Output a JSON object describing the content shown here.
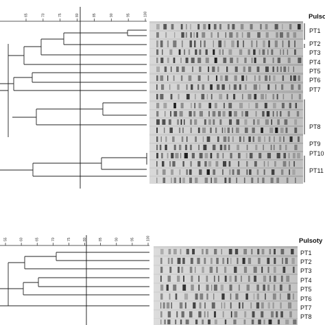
{
  "panels": [
    {
      "header": "Pulsoty",
      "scale_ticks": [
        "65",
        "70",
        "75",
        "80",
        "85",
        "90",
        "95",
        "100"
      ],
      "pulsotypes": [
        "PT1",
        "PT2",
        "PT3",
        "PT4",
        "PT5",
        "PT6",
        "PT7",
        "PT8",
        "PT9",
        "PT10",
        "PT11"
      ]
    },
    {
      "header": "Pulsoty",
      "scale_ticks": [
        "55",
        "60",
        "65",
        "70",
        "75",
        "80",
        "85",
        "90",
        "95",
        "100"
      ],
      "pulsotypes": [
        "PT1",
        "PT2",
        "PT3",
        "PT4",
        "PT5",
        "PT6",
        "PT7",
        "PT8"
      ]
    }
  ]
}
